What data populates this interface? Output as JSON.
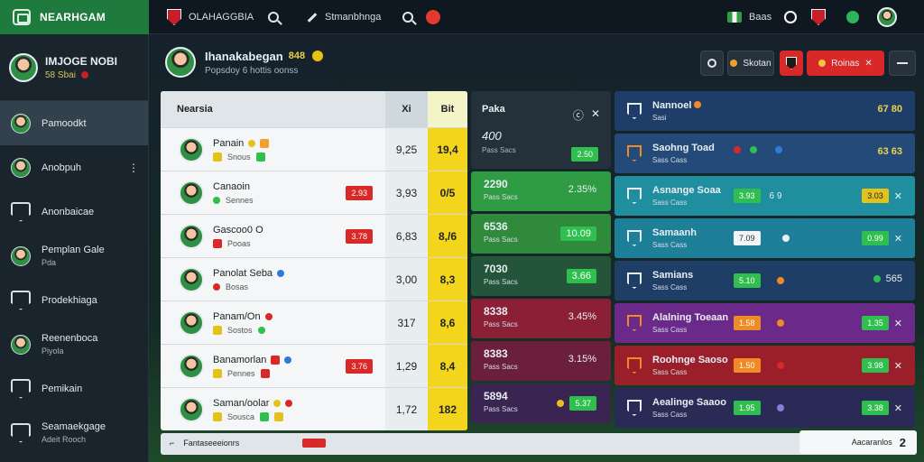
{
  "brand": {
    "name": "NEARHGAM"
  },
  "topbar": {
    "club_label": "OLAHAGGBIA",
    "search_label": "Stmanbhnga",
    "lang_flag_label": "Baas"
  },
  "sidebar": {
    "profile": {
      "name": "IMJOGE NOBI",
      "sub": "58 Sbai"
    },
    "items": [
      {
        "label": "Pamoodkt",
        "sub": "",
        "icon": "player-avatar",
        "active": true
      },
      {
        "label": "Anobpuh",
        "sub": "",
        "icon": "player-avatar",
        "more": "⋮"
      },
      {
        "label": "Anonbaicae",
        "sub": "",
        "icon": "shield"
      },
      {
        "label": "Pemplan Gale",
        "sub": "Pda",
        "icon": "player-avatar"
      },
      {
        "label": "Prodekhiaga",
        "sub": "",
        "icon": "shield"
      },
      {
        "label": "Reenenboca",
        "sub": "Piyola",
        "icon": "player-avatar"
      },
      {
        "label": "Pemikain",
        "sub": "",
        "icon": "shield"
      },
      {
        "label": "Seamaekgage",
        "sub": "Adeit Rooch",
        "icon": "shield"
      }
    ]
  },
  "match_header": {
    "title": "Ihanakabegan",
    "score": "848",
    "subtitle": "Popsdoy 6 hottis oonss"
  },
  "header_actions": {
    "filter_label": "Skotan",
    "live_label": "Roinas"
  },
  "table": {
    "columns": [
      "Nearsia",
      "Xi",
      "Bit"
    ],
    "rows": [
      {
        "name": "Panain",
        "sub": "Snous",
        "col2": "9,25",
        "col3": "19,4",
        "tag": ""
      },
      {
        "name": "Canaoin",
        "sub": "Sennes",
        "col2": "3,93",
        "col3": "0/5",
        "tag": "2.93"
      },
      {
        "name": "Gascoo0 O",
        "sub": "Pooas",
        "col2": "6,83",
        "col3": "8,/6",
        "tag": "3.78"
      },
      {
        "name": "Panolat Seba",
        "sub": "Bosas",
        "col2": "3,00",
        "col3": "8,3",
        "tag": ""
      },
      {
        "name": "Panam/On",
        "sub": "Sostos",
        "col2": "317",
        "col3": "8,6",
        "tag": ""
      },
      {
        "name": "Banamorlan",
        "sub": "Pennes",
        "col2": "1,29",
        "col3": "8,4",
        "tag": "3.76"
      },
      {
        "name": "Saman/oolar",
        "sub": "Sousca",
        "col2": "1,72",
        "col3": "182",
        "tag": ""
      }
    ]
  },
  "stats": {
    "title": "Paka",
    "head_value": "400",
    "head_sub": "Pass Sacs",
    "head_pill": "2.50",
    "boxes": [
      {
        "value": "2290",
        "sub": "Pass Sacs",
        "right": "2.35%",
        "color": "#2f9c43"
      },
      {
        "value": "6536",
        "sub": "Pass Sacs",
        "right": "10.09",
        "color": "#2f8a3c",
        "pill": true
      },
      {
        "value": "7030",
        "sub": "Pass Sacs",
        "right": "3.66",
        "color": "#24543a",
        "pill": true
      },
      {
        "value": "8338",
        "sub": "Pass Sacs",
        "right": "3.45%",
        "color": "#8a1f36"
      },
      {
        "value": "8383",
        "sub": "Pass Sacs",
        "right": "3.15%",
        "color": "#6b1f3a"
      },
      {
        "value": "5894",
        "sub": "Pass Sacs",
        "right": "5.37",
        "color": "#3a2452"
      }
    ]
  },
  "right": {
    "rows": [
      {
        "title": "Nannoel",
        "sub": "Sasi",
        "mid": [],
        "right": "67 80",
        "color": "#1e3d68",
        "pill": ""
      },
      {
        "title": "Saohng Toad",
        "sub": "Sass Cass",
        "mid": [
          "dot",
          "dot"
        ],
        "right": "63 63",
        "color": "#234a78",
        "pill": ""
      },
      {
        "title": "Asnange Soaa",
        "sub": "Sass Cass",
        "mid": [
          "3.93",
          "6 9"
        ],
        "right": "3.03",
        "color": "#1f8fa0",
        "pill": "yellow"
      },
      {
        "title": "Samaanh",
        "sub": "Sass Cass",
        "mid": [
          "7.09"
        ],
        "right": "0.99",
        "color": "#1d7f98",
        "pill": "green"
      },
      {
        "title": "Samians",
        "sub": "Sass Cass",
        "mid": [
          "5.10"
        ],
        "right": "565",
        "color": "#1f3e66",
        "pill": ""
      },
      {
        "title": "Alalning Toeaan",
        "sub": "Sass Cass",
        "mid": [
          "1.58"
        ],
        "right": "1.35",
        "color": "#6b2a8a",
        "pill": "green"
      },
      {
        "title": "Roohnge Saoso",
        "sub": "Sass Cass",
        "mid": [
          "1.50"
        ],
        "right": "3.98",
        "color": "#9a1f2a",
        "pill": "green"
      },
      {
        "title": "Aealinge Saaoo",
        "sub": "Sass Cass",
        "mid": [
          "1.95"
        ],
        "right": "3.38",
        "color": "#2a2a56",
        "pill": "green"
      }
    ]
  },
  "bottom": {
    "left_text": "Fantaseeeionrs",
    "page_label": "Aacaranlos",
    "page_number": "2"
  }
}
